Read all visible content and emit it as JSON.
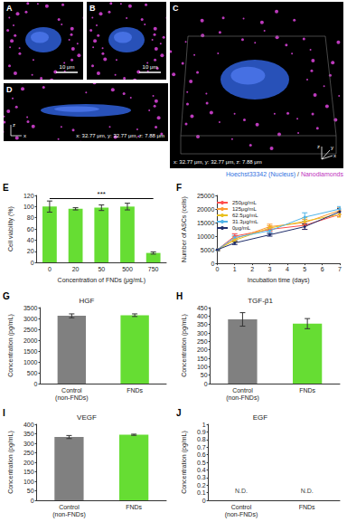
{
  "images": {
    "panels": [
      {
        "label": "A",
        "scale_bar": "10 μm"
      },
      {
        "label": "B",
        "scale_bar": "10 μm"
      },
      {
        "label": "C",
        "dimensions": "x: 32.77 μm, y: 32.77 μm, z: 7.88 μm",
        "axes": [
          "z",
          "y",
          "x"
        ]
      },
      {
        "label": "D",
        "dimensions": "x: 32.77 μm, y: 32.77 μm, z: 7.88 μm",
        "axes": [
          "z",
          "x"
        ]
      }
    ],
    "legend": [
      {
        "text": "Hoechst33342 (Nucleus)",
        "color": "#2f6fe0"
      },
      {
        "text": " / ",
        "color": "#333333"
      },
      {
        "text": "Nanodiamonds",
        "color": "#c030c0"
      }
    ]
  },
  "chart_data": [
    {
      "panel": "E",
      "type": "bar",
      "categories": [
        "0",
        "20",
        "50",
        "500",
        "750"
      ],
      "values": [
        100,
        96,
        98,
        100,
        17
      ],
      "errors": [
        10,
        2,
        5,
        6,
        2
      ],
      "color": "#66dd33",
      "xlabel": "Concentration of FNDs (μg/mL)",
      "ylabel": "Cell viability (%)",
      "ylim": [
        0,
        120
      ],
      "yticks": [
        0,
        20,
        40,
        60,
        80,
        100,
        120
      ],
      "grid": false,
      "annotations": [
        {
          "text": "***",
          "from": "0",
          "to": "750",
          "y": 115
        }
      ]
    },
    {
      "panel": "F",
      "type": "line",
      "x": [
        0,
        1,
        3,
        5,
        7
      ],
      "xlim": [
        0,
        7
      ],
      "xticks": [
        0,
        1,
        2,
        3,
        4,
        5,
        6,
        7
      ],
      "ylim": [
        0,
        25000
      ],
      "yticks": [
        0,
        5000,
        10000,
        15000,
        20000,
        25000
      ],
      "xlabel": "Incubation time (days)",
      "ylabel": "Number of ASCs (cells)",
      "legend": "upper left",
      "marker": "circle",
      "grid": false,
      "series": [
        {
          "name": "250μg/mL",
          "color": "#ff4d4d",
          "values": [
            5000,
            10000,
            12500,
            14000,
            18000
          ],
          "errors": [
            300,
            900,
            700,
            1500,
            800
          ]
        },
        {
          "name": "125μg/mL",
          "color": "#ff9933",
          "values": [
            5000,
            9000,
            13500,
            15000,
            19500
          ],
          "errors": [
            300,
            800,
            900,
            1200,
            900
          ]
        },
        {
          "name": "62.5μg/mL",
          "color": "#e8c020",
          "values": [
            5000,
            8500,
            13000,
            15500,
            18000
          ],
          "errors": [
            300,
            700,
            800,
            1300,
            1000
          ]
        },
        {
          "name": "31.3μg/mL",
          "color": "#4fb3e8",
          "values": [
            5000,
            9500,
            12000,
            17000,
            20000
          ],
          "errors": [
            300,
            800,
            700,
            1600,
            900
          ]
        },
        {
          "name": "0μg/mL",
          "color": "#1f2d6b",
          "values": [
            5000,
            7500,
            10500,
            13500,
            19000
          ],
          "errors": [
            300,
            600,
            500,
            1000,
            1200
          ]
        }
      ]
    },
    {
      "panel": "G",
      "type": "bar",
      "title": "HGF",
      "categories": [
        "Control\n(non-FNDs)",
        "FNDs"
      ],
      "values": [
        3120,
        3150
      ],
      "errors": [
        90,
        60
      ],
      "colors": [
        "#808080",
        "#66dd33"
      ],
      "ylabel": "Concentration (pg/mL)",
      "ylim": [
        0,
        3500
      ],
      "yticks": [
        0,
        500,
        1000,
        1500,
        2000,
        2500,
        3000,
        3500
      ],
      "grid": false
    },
    {
      "panel": "H",
      "type": "bar",
      "title": "TGF-β1",
      "categories": [
        "Control\n(non-FNDs)",
        "FNDs"
      ],
      "values": [
        380,
        355
      ],
      "errors": [
        40,
        30
      ],
      "colors": [
        "#808080",
        "#66dd33"
      ],
      "ylabel": "Concentration (pg/mL)",
      "ylim": [
        0,
        450
      ],
      "yticks": [
        0,
        50,
        100,
        150,
        200,
        250,
        300,
        350,
        400,
        450
      ],
      "grid": false
    },
    {
      "panel": "I",
      "type": "bar",
      "title": "VEGF",
      "categories": [
        "Control\n(non-FNDs)",
        "FNDs"
      ],
      "values": [
        333,
        345
      ],
      "errors": [
        8,
        3
      ],
      "colors": [
        "#808080",
        "#66dd33"
      ],
      "ylabel": "Concentration (pg/mL)",
      "ylim": [
        0,
        400
      ],
      "yticks": [
        0,
        50,
        100,
        150,
        200,
        250,
        300,
        350,
        400
      ],
      "grid": false
    },
    {
      "panel": "J",
      "type": "bar",
      "title": "EGF",
      "categories": [
        "Control\n(non-FNDs)",
        "FNDs"
      ],
      "values": [
        null,
        null
      ],
      "ylabel": "Concentration (pg/mL)",
      "ylim": [
        0,
        1
      ],
      "yticks": [
        0,
        0.1,
        0.2,
        0.3,
        0.4,
        0.5,
        0.6,
        0.7,
        0.8,
        0.9,
        1
      ],
      "grid": false,
      "annotations": [
        {
          "text": "N.D.",
          "x": "Control\n(non-FNDs)",
          "y": 0.02
        },
        {
          "text": "N.D.",
          "x": "FNDs",
          "y": 0.02
        }
      ]
    }
  ]
}
